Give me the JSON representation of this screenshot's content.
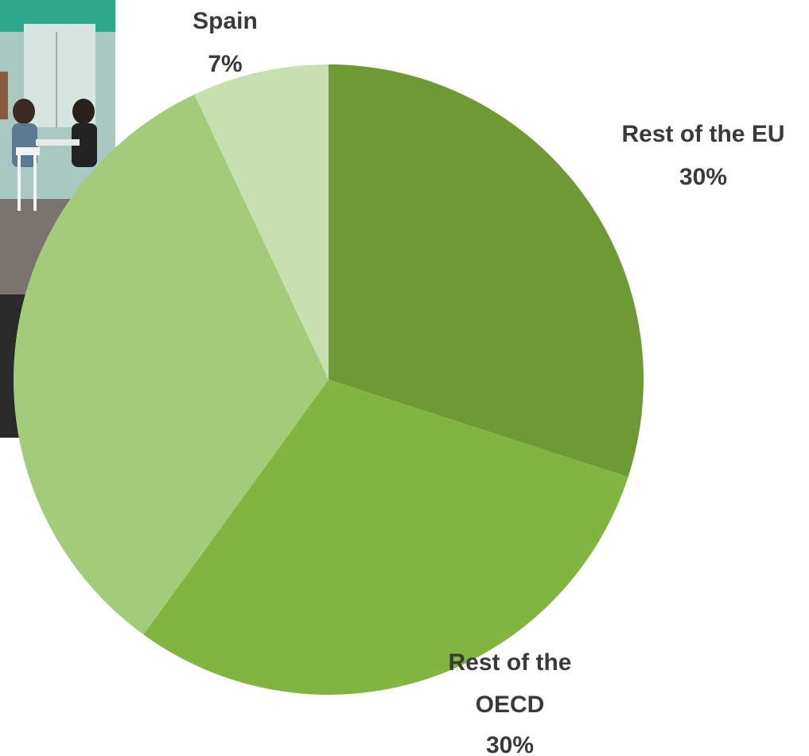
{
  "chart_data": {
    "type": "pie",
    "slices": [
      {
        "label_lines": [
          "Rest of the EU"
        ],
        "value_label": "30%",
        "value": 30,
        "color": "#6e9a36"
      },
      {
        "label_lines": [
          "Rest of the",
          "OECD"
        ],
        "value_label": "30%",
        "value": 30,
        "color": "#82b440"
      },
      {
        "label_lines": [],
        "value_label": "",
        "value": 33,
        "color": "#a3cc7a"
      },
      {
        "label_lines": [
          "Spain"
        ],
        "value_label": "7%",
        "value": 7,
        "color": "#c6e0b0"
      }
    ],
    "start_angle_deg": 0,
    "direction": "clockwise"
  }
}
